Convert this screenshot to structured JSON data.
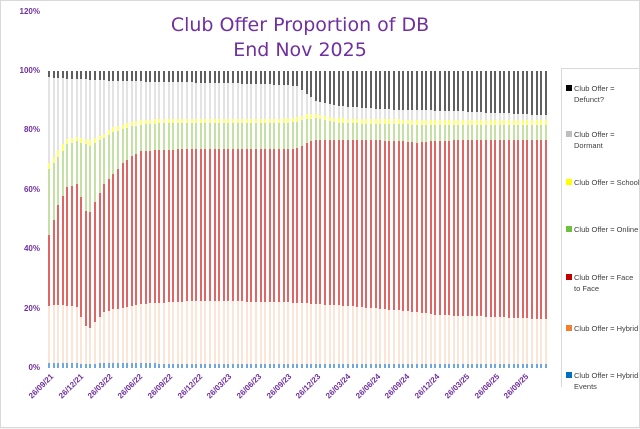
{
  "chart": {
    "title_line1": "Club Offer Proportion of DB",
    "title_line2": "End Nov 2025",
    "y_ticks": [
      "0%",
      "20%",
      "40%",
      "60%",
      "80%",
      "100%",
      "120%"
    ],
    "x_ticks": [
      "26/09/21",
      "26/12/21",
      "26/03/22",
      "26/06/22",
      "26/09/22",
      "26/12/22",
      "26/03/23",
      "26/06/23",
      "26/09/23",
      "26/12/23",
      "26/03/24",
      "26/06/24",
      "26/09/24",
      "26/12/24",
      "26/03/25",
      "26/06/25",
      "26/09/25"
    ],
    "legend": [
      {
        "label_line1": "Club Offer =",
        "label_line2": "Defunct?",
        "color": "#000000"
      },
      {
        "label_line1": "Club Offer =",
        "label_line2": "Dormant",
        "color": "#bfbfbf"
      },
      {
        "label_line1": "Club Offer = School",
        "label_line2": "",
        "color": "#ffff00"
      },
      {
        "label_line1": "Club Offer = Online",
        "label_line2": "",
        "color": "#70c040"
      },
      {
        "label_line1": "Club Offer = Face",
        "label_line2": "to Face",
        "color": "#c00000"
      },
      {
        "label_line1": "Club Offer = Hybrid",
        "label_line2": "",
        "color": "#f08030"
      },
      {
        "label_line1": "Club Offer = Hybrid",
        "label_line2": "Events",
        "color": "#0070c0"
      }
    ]
  },
  "chart_data": {
    "type": "bar",
    "stacked": true,
    "percent_stacked": true,
    "title": "Club Offer Proportion of DB — End Nov 2025",
    "xlabel": "",
    "ylabel": "",
    "ylim": [
      0,
      120
    ],
    "y_tick_labels": [
      "0%",
      "20%",
      "40%",
      "60%",
      "80%",
      "100%",
      "120%"
    ],
    "x_tick_labels": [
      "26/09/21",
      "26/12/21",
      "26/03/22",
      "26/06/22",
      "26/09/22",
      "26/12/22",
      "26/03/23",
      "26/06/23",
      "26/09/23",
      "26/12/23",
      "26/03/24",
      "26/06/24",
      "26/09/24",
      "26/12/24",
      "26/03/25",
      "26/06/25",
      "26/09/25"
    ],
    "interval": "fortnightly",
    "bar_count": 109,
    "legend_position": "right",
    "grid": false,
    "series_order_bottom_to_top": [
      "Club Offer = Hybrid Events",
      "Club Offer = Hybrid",
      "Club Offer = Face to Face",
      "Club Offer = Online",
      "Club Offer = School",
      "Club Offer = Dormant",
      "Club Offer = Defunct?"
    ],
    "cumulative_tops_keyframes": {
      "note": "Cumulative top (%) of each stacked segment at selected bar indices; intermediate bars interpolated linearly.",
      "bar_index": [
        0,
        2,
        4,
        6,
        8,
        9,
        10,
        12,
        14,
        16,
        18,
        20,
        24,
        30,
        40,
        50,
        54,
        56,
        58,
        62,
        66,
        70,
        76,
        80,
        84,
        90,
        96,
        100,
        104,
        108
      ],
      "hybrid_events": [
        1.8,
        1.8,
        1.8,
        1.6,
        1.3,
        1.2,
        1.5,
        1.8,
        1.8,
        1.8,
        1.7,
        1.6,
        1.5,
        1.5,
        1.5,
        1.5,
        1.5,
        1.5,
        1.5,
        1.5,
        1.4,
        1.4,
        1.4,
        1.4,
        1.3,
        1.3,
        1.3,
        1.2,
        1.2,
        1.2
      ],
      "hybrid": [
        21.0,
        21.2,
        21.0,
        20.5,
        14.0,
        13.5,
        15.5,
        18.8,
        19.8,
        20.2,
        20.8,
        21.5,
        22.0,
        22.5,
        22.5,
        22.2,
        22.0,
        21.8,
        21.6,
        21.2,
        20.8,
        20.2,
        19.4,
        18.8,
        18.0,
        17.5,
        17.3,
        17.0,
        16.7,
        16.5
      ],
      "face_to_face": [
        45.0,
        55.0,
        61.0,
        62.0,
        53.0,
        52.5,
        56.0,
        62.0,
        65.5,
        69.0,
        71.5,
        73.0,
        73.5,
        73.8,
        73.8,
        73.8,
        74.0,
        76.0,
        77.0,
        77.0,
        76.8,
        76.8,
        76.5,
        76.0,
        76.5,
        76.8,
        76.8,
        76.8,
        76.8,
        76.8
      ],
      "online": [
        67.0,
        71.0,
        75.5,
        76.5,
        75.5,
        75.0,
        76.0,
        77.5,
        79.5,
        80.5,
        81.5,
        82.0,
        82.5,
        82.5,
        82.5,
        82.5,
        83.0,
        84.0,
        84.2,
        82.8,
        82.5,
        82.3,
        82.3,
        82.0,
        82.0,
        82.0,
        82.0,
        82.0,
        82.0,
        82.0
      ],
      "school": [
        69.0,
        73.5,
        77.2,
        78.0,
        77.2,
        76.8,
        77.5,
        79.0,
        81.2,
        82.0,
        83.0,
        83.5,
        84.0,
        84.0,
        84.0,
        84.0,
        84.5,
        85.5,
        85.7,
        84.3,
        84.0,
        83.8,
        83.8,
        83.5,
        83.5,
        83.5,
        83.5,
        83.5,
        83.5,
        83.5
      ],
      "dormant": [
        98.0,
        97.8,
        97.5,
        97.5,
        97.3,
        97.2,
        97.2,
        97.0,
        96.8,
        96.8,
        96.7,
        96.6,
        96.5,
        96.3,
        96.0,
        95.5,
        95.0,
        92.5,
        90.0,
        88.5,
        88.0,
        87.5,
        87.0,
        87.0,
        86.8,
        86.5,
        86.0,
        85.8,
        85.5,
        85.3
      ],
      "defunct": [
        100,
        100,
        100,
        100,
        100,
        100,
        100,
        100,
        100,
        100,
        100,
        100,
        100,
        100,
        100,
        100,
        100,
        100,
        100,
        100,
        100,
        100,
        100,
        100,
        100,
        100,
        100,
        100,
        100,
        100
      ]
    },
    "series_first_last_percent": [
      {
        "name": "Club Offer = Hybrid Events",
        "first": 1.8,
        "last": 1.2
      },
      {
        "name": "Club Offer = Hybrid",
        "first": 19.2,
        "last": 15.3
      },
      {
        "name": "Club Offer = Face to Face",
        "first": 24.0,
        "last": 60.3
      },
      {
        "name": "Club Offer = Online",
        "first": 22.0,
        "last": 5.2
      },
      {
        "name": "Club Offer = School",
        "first": 2.0,
        "last": 1.5
      },
      {
        "name": "Club Offer = Dormant",
        "first": 29.0,
        "last": 1.8
      },
      {
        "name": "Club Offer = Defunct?",
        "first": 2.0,
        "last": 14.7
      }
    ],
    "bar_colors": {
      "hybrid_events": "#6fa8dc",
      "hybrid": "#fbe5d6",
      "face_to_face": "#e06666",
      "online": "#c5e0a5",
      "school": "#ffff66",
      "dormant": "#e3e3e3",
      "defunct": "#606060"
    }
  }
}
